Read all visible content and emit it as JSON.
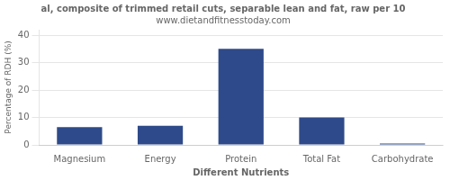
{
  "chart_data": {
    "type": "bar",
    "title": "al, composite of trimmed retail cuts, separable lean and fat, raw per 10",
    "subtitle": "www.dietandfitnesstoday.com",
    "xlabel": "Different Nutrients",
    "ylabel": "Percentage of RDH (%)",
    "categories": [
      "Magnesium",
      "Energy",
      "Protein",
      "Total Fat",
      "Carbohydrate"
    ],
    "values": [
      6.5,
      7.0,
      35.0,
      10.0,
      0.5
    ],
    "color": "#2e4a8a",
    "ylim": [
      0,
      42
    ],
    "yticks": [
      0,
      10,
      20,
      30,
      40
    ],
    "grid": true
  }
}
